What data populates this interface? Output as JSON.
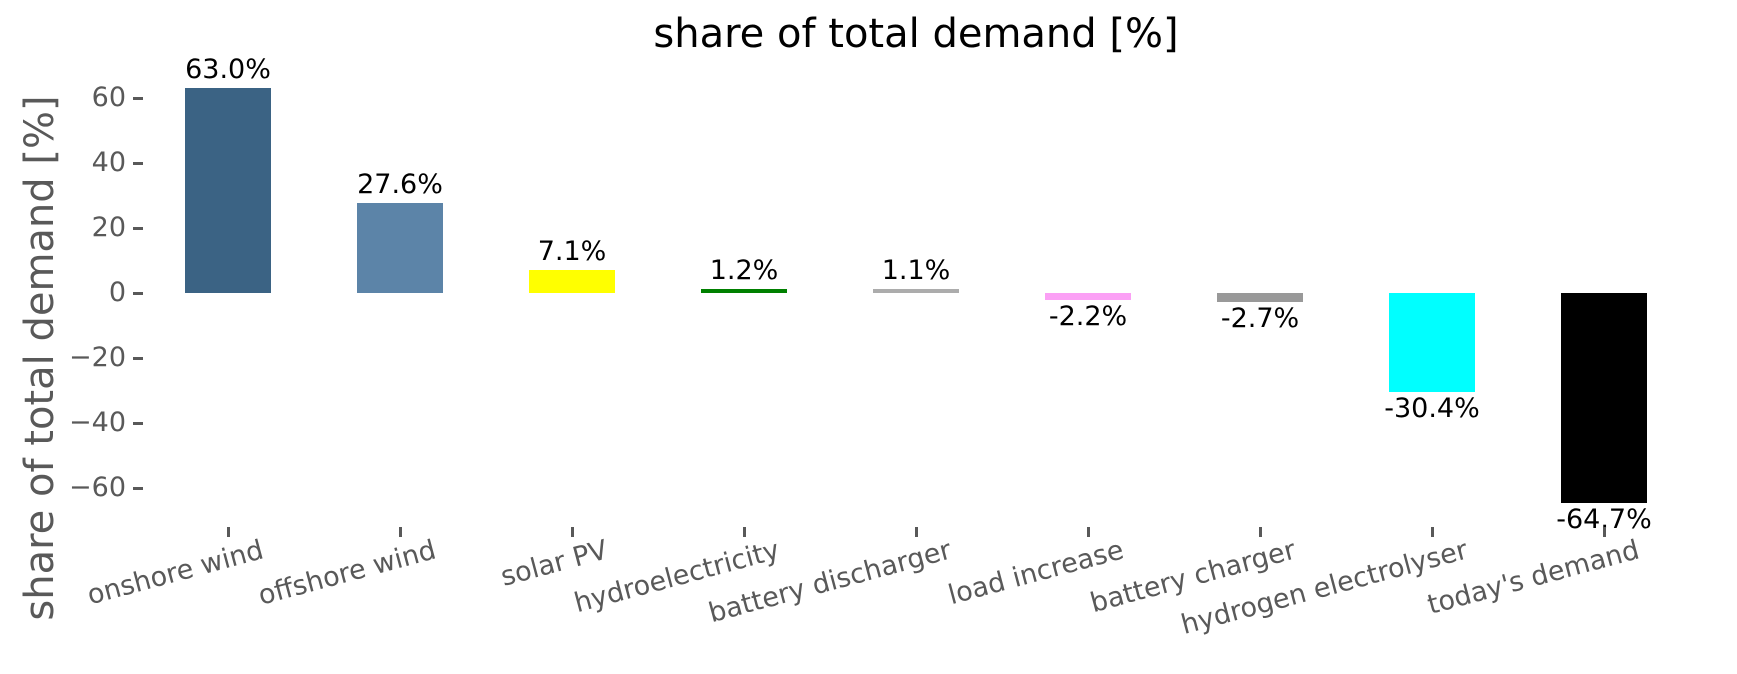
{
  "chart_data": {
    "type": "bar",
    "title": "share of total demand [%]",
    "ylabel": "share of total demand [%]",
    "xlabel": "",
    "categories": [
      "onshore wind",
      "offshore wind",
      "solar PV",
      "hydroelectricity",
      "battery discharger",
      "load increase",
      "battery charger",
      "hydrogen electrolyser",
      "today's demand"
    ],
    "values": [
      63.0,
      27.6,
      7.1,
      1.2,
      1.1,
      -2.2,
      -2.7,
      -30.4,
      -64.7
    ],
    "bar_labels": [
      "63.0%",
      "27.6%",
      "7.1%",
      "1.2%",
      "1.1%",
      "-2.2%",
      "-2.7%",
      "-30.4%",
      "-64.7%"
    ],
    "bar_colors": [
      "#3B6384",
      "#5C84A8",
      "#FFFF00",
      "#008000",
      "#ACACAC",
      "#FBA0F5",
      "#999999",
      "#00FFFF",
      "#000000"
    ],
    "yticks": [
      60,
      40,
      20,
      0,
      -20,
      -40,
      -60
    ],
    "ytick_labels": [
      "60",
      "40",
      "20",
      "0",
      "−20",
      "−40",
      "−60"
    ],
    "ylim": [
      -76,
      71
    ],
    "grid": false,
    "legend": "none",
    "x_label_rotation_deg": 15,
    "axis_text_color": "#595959",
    "bar_label_color": "#000000",
    "background_color": "#FFFFFF"
  }
}
